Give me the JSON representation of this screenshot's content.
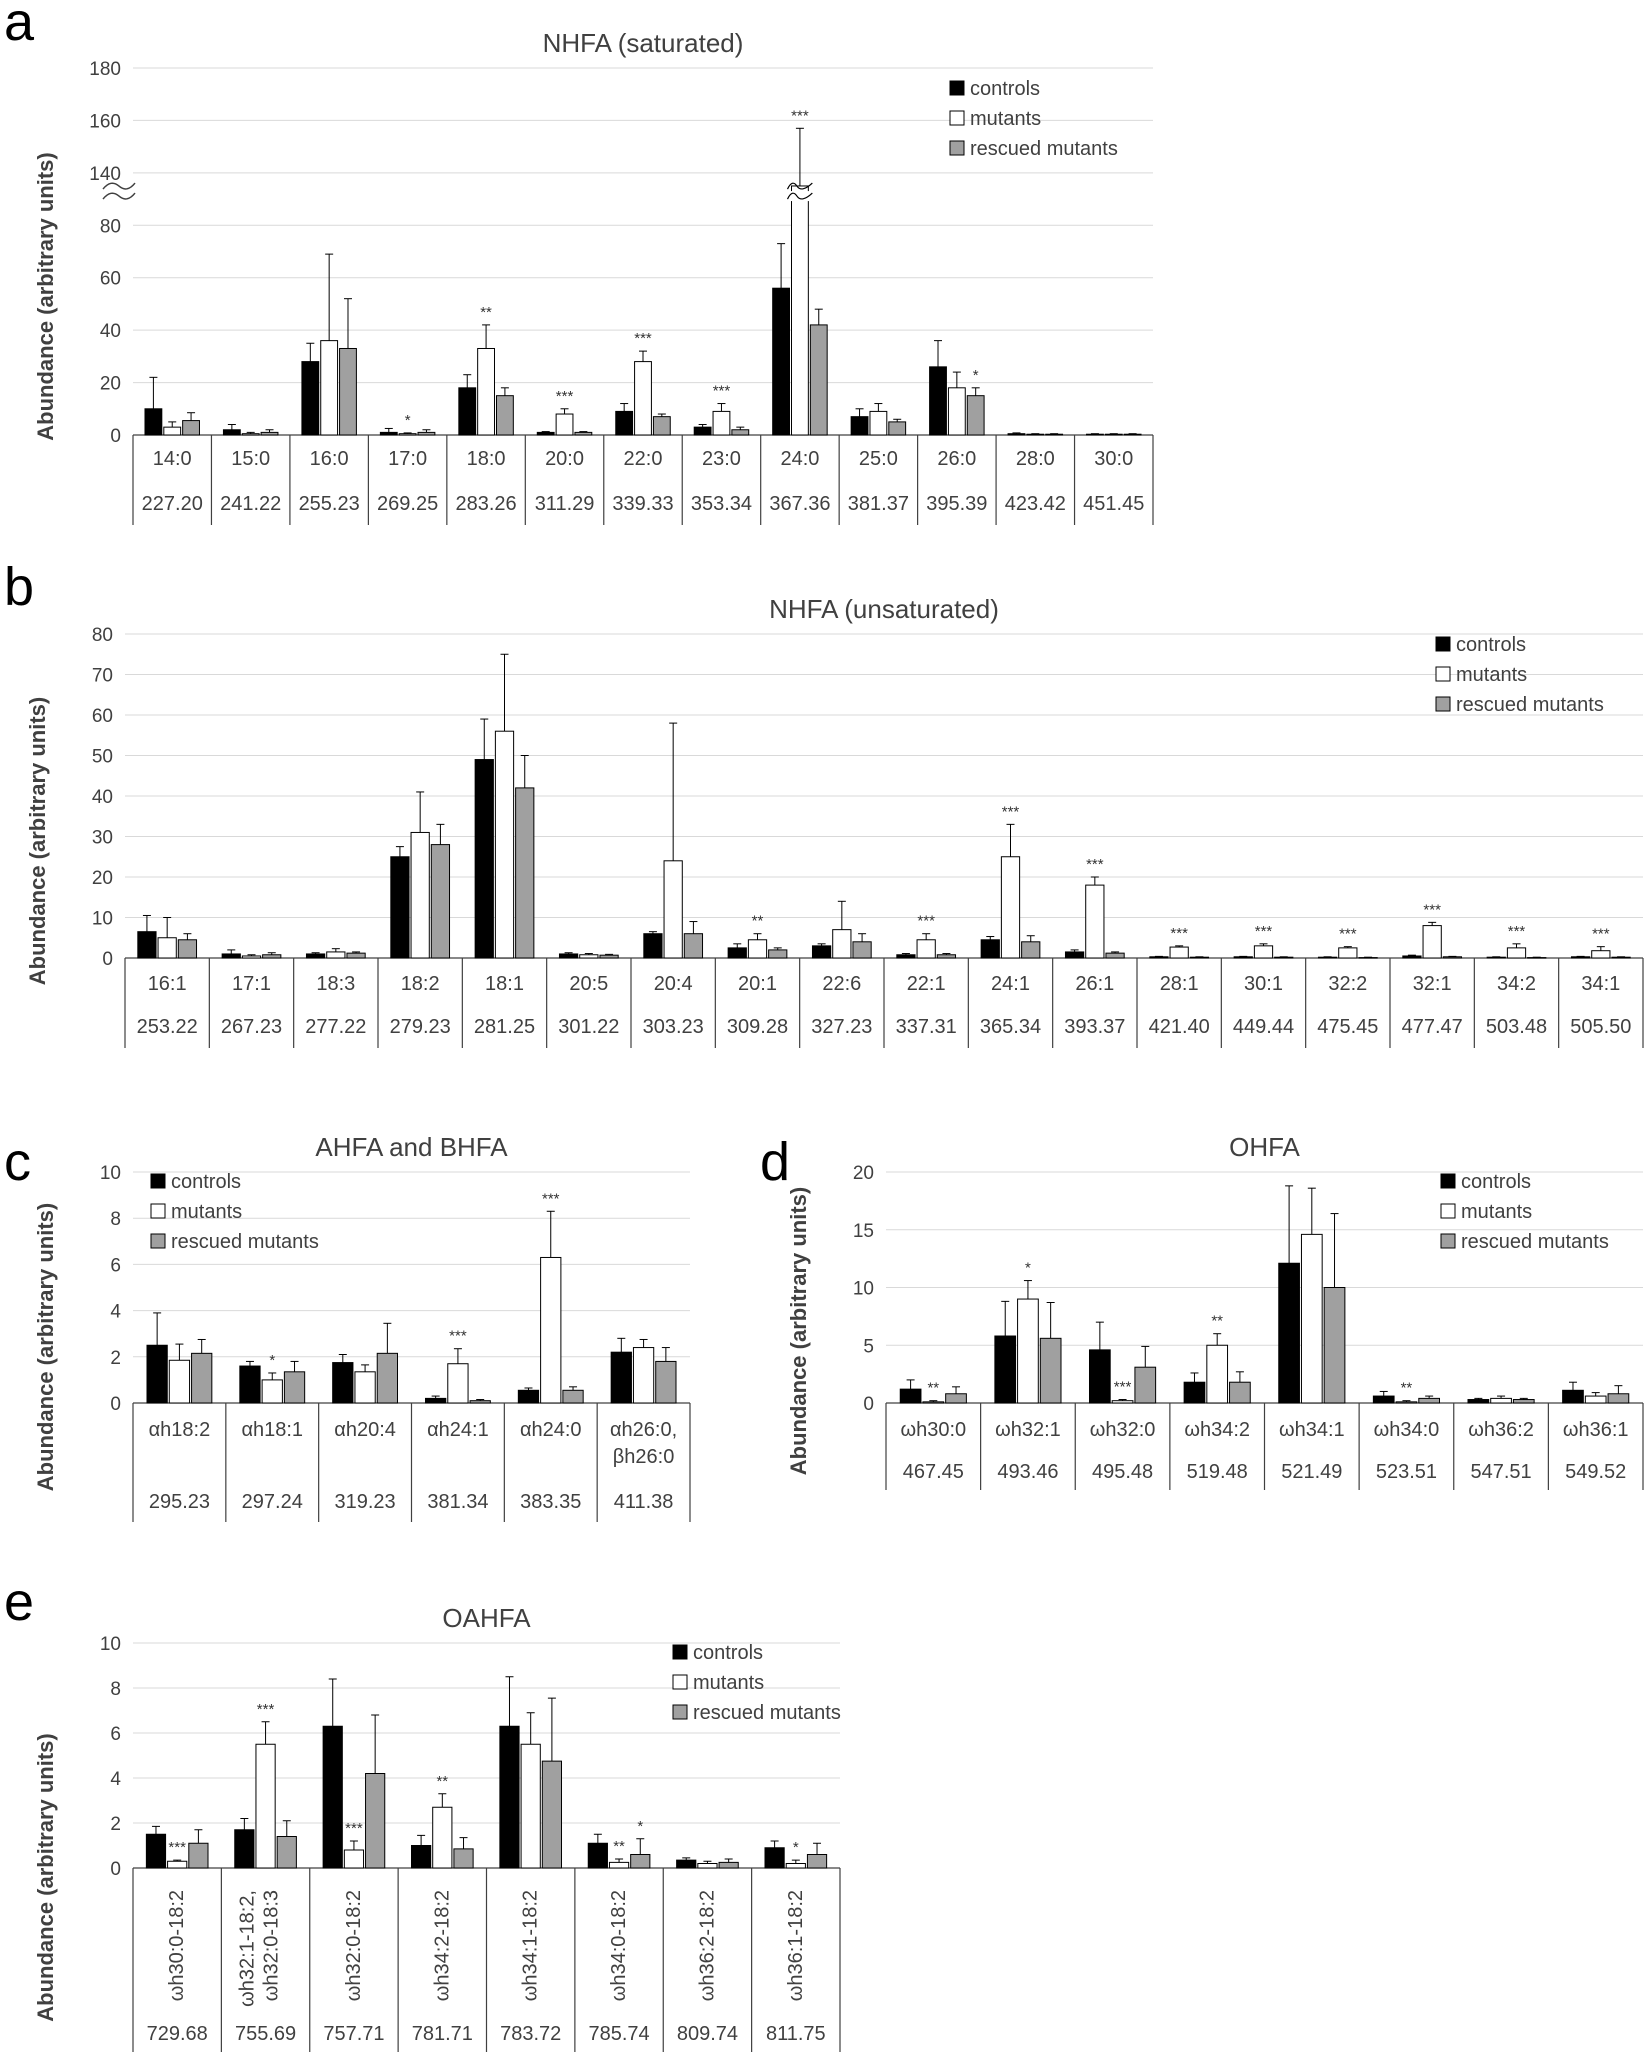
{
  "figure": {
    "series_names": [
      "controls",
      "mutants",
      "rescued mutants"
    ]
  },
  "colors": {
    "controls": "#000000",
    "mutants": "#ffffff",
    "rescued": "#a0a0a0",
    "grid": "#d9d9d9",
    "text": "#404040"
  },
  "chart_data": [
    {
      "panel": "a",
      "type": "bar",
      "title": "NHFA (saturated)",
      "ylabel": "Abundance (arbitrary units)",
      "ylim": [
        0,
        180
      ],
      "axis_break": {
        "from": 90,
        "to": 130
      },
      "yticks": [
        "0",
        "20",
        "40",
        "60",
        "80",
        "140",
        "160",
        "180"
      ],
      "categories": [
        "14:0",
        "15:0",
        "16:0",
        "17:0",
        "18:0",
        "20:0",
        "22:0",
        "23:0",
        "24:0",
        "25:0",
        "26:0",
        "28:0",
        "30:0"
      ],
      "mz": [
        "227.20",
        "241.22",
        "255.23",
        "269.25",
        "283.26",
        "311.29",
        "339.33",
        "353.34",
        "367.36",
        "381.37",
        "395.39",
        "423.42",
        "451.45"
      ],
      "series": [
        {
          "name": "controls",
          "values": [
            10,
            2,
            28,
            1,
            18,
            1,
            9,
            3,
            56,
            7,
            26,
            0.5,
            0.3
          ],
          "errors": [
            12,
            2,
            7,
            1.5,
            5,
            0.3,
            3,
            1,
            17,
            3,
            10,
            0.3,
            0.2
          ]
        },
        {
          "name": "mutants",
          "values": [
            3,
            0.5,
            36,
            0.5,
            33,
            8,
            28,
            9,
            135,
            9,
            18,
            0.3,
            0.3
          ],
          "errors": [
            2,
            0.5,
            33,
            0.3,
            9,
            2,
            4,
            3,
            22,
            3,
            6,
            0.2,
            0.2
          ]
        },
        {
          "name": "rescued mutants",
          "values": [
            5.5,
            1,
            33,
            1,
            15,
            1,
            7,
            2,
            42,
            5,
            15,
            0.3,
            0.3
          ],
          "errors": [
            3,
            1,
            19,
            1,
            3,
            0.3,
            1,
            1,
            6,
            1,
            3,
            0.2,
            0.2
          ]
        }
      ],
      "significance": [
        {
          "cat": 3,
          "series": 1,
          "label": "*"
        },
        {
          "cat": 4,
          "series": 1,
          "label": "**"
        },
        {
          "cat": 5,
          "series": 1,
          "label": "***"
        },
        {
          "cat": 6,
          "series": 1,
          "label": "***"
        },
        {
          "cat": 7,
          "series": 1,
          "label": "***"
        },
        {
          "cat": 8,
          "series": 1,
          "label": "***"
        },
        {
          "cat": 10,
          "series": 2,
          "label": "*"
        }
      ],
      "legend": "top-right"
    },
    {
      "panel": "b",
      "type": "bar",
      "title": "NHFA (unsaturated)",
      "ylabel": "Abundance (arbitrary units)",
      "ylim": [
        0,
        80
      ],
      "yticks": [
        "0",
        "10",
        "20",
        "30",
        "40",
        "50",
        "60",
        "70",
        "80"
      ],
      "categories": [
        "16:1",
        "17:1",
        "18:3",
        "18:2",
        "18:1",
        "20:5",
        "20:4",
        "20:1",
        "22:6",
        "22:1",
        "24:1",
        "26:1",
        "28:1",
        "30:1",
        "32:2",
        "32:1",
        "34:2",
        "34:1"
      ],
      "mz": [
        "253.22",
        "267.23",
        "277.22",
        "279.23",
        "281.25",
        "301.22",
        "303.23",
        "309.28",
        "327.23",
        "337.31",
        "365.34",
        "393.37",
        "421.40",
        "449.44",
        "475.45",
        "477.47",
        "503.48",
        "505.50"
      ],
      "series": [
        {
          "name": "controls",
          "values": [
            6.5,
            1,
            1,
            25,
            49,
            1,
            6,
            2.5,
            3,
            0.8,
            4.5,
            1.5,
            0.3,
            0.3,
            0.2,
            0.5,
            0.2,
            0.3
          ],
          "errors": [
            4,
            1,
            0.3,
            2.5,
            10,
            0.3,
            0.5,
            1,
            0.5,
            0.3,
            0.8,
            0.5,
            0.1,
            0.1,
            0.1,
            0.2,
            0.1,
            0.1
          ]
        },
        {
          "name": "mutants",
          "values": [
            5,
            0.5,
            1.5,
            31,
            56,
            0.8,
            24,
            4.5,
            7,
            4.5,
            25,
            18,
            2.7,
            3,
            2.5,
            8,
            2.5,
            1.8
          ],
          "errors": [
            5,
            0.3,
            0.8,
            10,
            19,
            0.3,
            34,
            1.5,
            7,
            1.5,
            8,
            2,
            0.3,
            0.5,
            0.3,
            0.8,
            1,
            1
          ]
        },
        {
          "name": "rescued mutants",
          "values": [
            4.5,
            0.8,
            1.2,
            28,
            42,
            0.7,
            6,
            2,
            4,
            0.8,
            4,
            1.2,
            0.2,
            0.2,
            0.1,
            0.3,
            0.1,
            0.2
          ],
          "errors": [
            1.5,
            0.5,
            0.3,
            5,
            8,
            0.2,
            3,
            0.5,
            2,
            0.3,
            1.5,
            0.3,
            0.1,
            0.1,
            0.1,
            0.1,
            0.1,
            0.1
          ]
        }
      ],
      "significance": [
        {
          "cat": 7,
          "series": 1,
          "label": "**"
        },
        {
          "cat": 9,
          "series": 1,
          "label": "***"
        },
        {
          "cat": 10,
          "series": 1,
          "label": "***"
        },
        {
          "cat": 11,
          "series": 1,
          "label": "***"
        },
        {
          "cat": 12,
          "series": 1,
          "label": "***"
        },
        {
          "cat": 13,
          "series": 1,
          "label": "***"
        },
        {
          "cat": 14,
          "series": 1,
          "label": "***"
        },
        {
          "cat": 15,
          "series": 1,
          "label": "***"
        },
        {
          "cat": 16,
          "series": 1,
          "label": "***"
        },
        {
          "cat": 17,
          "series": 1,
          "label": "***"
        }
      ],
      "legend": "top-right"
    },
    {
      "panel": "c",
      "type": "bar",
      "title": "AHFA and BHFA",
      "ylabel": "Abundance (arbitrary units)",
      "ylim": [
        0,
        10
      ],
      "yticks": [
        "0",
        "2",
        "4",
        "6",
        "8",
        "10"
      ],
      "categories": [
        "αh18:2",
        "αh18:1",
        "αh20:4",
        "αh24:1",
        "αh24:0",
        "αh26:0,\nβh26:0"
      ],
      "mz": [
        "295.23",
        "297.24",
        "319.23",
        "381.34",
        "383.35",
        "411.38"
      ],
      "series": [
        {
          "name": "controls",
          "values": [
            2.5,
            1.6,
            1.75,
            0.2,
            0.55,
            2.2
          ],
          "errors": [
            1.4,
            0.2,
            0.35,
            0.1,
            0.1,
            0.6
          ]
        },
        {
          "name": "mutants",
          "values": [
            1.85,
            1.0,
            1.35,
            1.7,
            6.3,
            2.4
          ],
          "errors": [
            0.7,
            0.3,
            0.3,
            0.65,
            2.0,
            0.35
          ]
        },
        {
          "name": "rescued mutants",
          "values": [
            2.15,
            1.35,
            2.15,
            0.1,
            0.55,
            1.8
          ],
          "errors": [
            0.6,
            0.45,
            1.3,
            0.05,
            0.15,
            0.6
          ]
        }
      ],
      "significance": [
        {
          "cat": 1,
          "series": 1,
          "label": "*"
        },
        {
          "cat": 3,
          "series": 1,
          "label": "***"
        },
        {
          "cat": 4,
          "series": 1,
          "label": "***"
        }
      ],
      "legend": "top-left"
    },
    {
      "panel": "d",
      "type": "bar",
      "title": "OHFA",
      "ylabel": "Abundance (arbitrary units)",
      "ylim": [
        0,
        20
      ],
      "yticks": [
        "0",
        "5",
        "10",
        "15",
        "20"
      ],
      "categories": [
        "ωh30:0",
        "ωh32:1",
        "ωh32:0",
        "ωh34:2",
        "ωh34:1",
        "ωh34:0",
        "ωh36:2",
        "ωh36:1"
      ],
      "mz": [
        "467.45",
        "493.46",
        "495.48",
        "519.48",
        "521.49",
        "523.51",
        "547.51",
        "549.52"
      ],
      "series": [
        {
          "name": "controls",
          "values": [
            1.2,
            5.8,
            4.6,
            1.8,
            12.1,
            0.6,
            0.3,
            1.1
          ],
          "errors": [
            0.8,
            3,
            2.4,
            0.8,
            6.7,
            0.4,
            0.1,
            0.7
          ]
        },
        {
          "name": "mutants",
          "values": [
            0.1,
            9.0,
            0.2,
            5.0,
            14.6,
            0.1,
            0.4,
            0.6
          ],
          "errors": [
            0.1,
            1.6,
            0.1,
            1.0,
            4.0,
            0.1,
            0.2,
            0.3
          ]
        },
        {
          "name": "rescued mutants",
          "values": [
            0.8,
            5.6,
            3.1,
            1.8,
            10.0,
            0.4,
            0.3,
            0.8
          ],
          "errors": [
            0.6,
            3.1,
            1.8,
            0.9,
            6.4,
            0.2,
            0.1,
            0.7
          ]
        }
      ],
      "significance": [
        {
          "cat": 0,
          "series": 1,
          "label": "**"
        },
        {
          "cat": 1,
          "series": 1,
          "label": "*"
        },
        {
          "cat": 2,
          "series": 1,
          "label": "***"
        },
        {
          "cat": 3,
          "series": 1,
          "label": "**"
        },
        {
          "cat": 5,
          "series": 1,
          "label": "**"
        }
      ],
      "legend": "top-right"
    },
    {
      "panel": "e",
      "type": "bar",
      "title": "OAHFA",
      "ylabel": "Abundance (arbitrary units)",
      "ylim": [
        0,
        10
      ],
      "yticks": [
        "0",
        "2",
        "4",
        "6",
        "8",
        "10"
      ],
      "categories": [
        "ωh30:0-18:2",
        "ωh32:1-18:2,\nωh32:0-18:3",
        "ωh32:0-18:2",
        "ωh34:2-18:2",
        "ωh34:1-18:2",
        "ωh34:0-18:2",
        "ωh36:2-18:2",
        "ωh36:1-18:2"
      ],
      "mz": [
        "729.68",
        "755.69",
        "757.71",
        "781.71",
        "783.72",
        "785.74",
        "809.74",
        "811.75"
      ],
      "series": [
        {
          "name": "controls",
          "values": [
            1.5,
            1.7,
            6.3,
            1.0,
            6.3,
            1.1,
            0.35,
            0.9
          ],
          "errors": [
            0.35,
            0.5,
            2.1,
            0.45,
            2.2,
            0.4,
            0.1,
            0.3
          ]
        },
        {
          "name": "mutants",
          "values": [
            0.3,
            5.5,
            0.8,
            2.7,
            5.5,
            0.25,
            0.2,
            0.2
          ],
          "errors": [
            0.05,
            1.0,
            0.4,
            0.6,
            1.4,
            0.15,
            0.1,
            0.15
          ]
        },
        {
          "name": "rescued mutants",
          "values": [
            1.1,
            1.4,
            4.2,
            0.85,
            4.75,
            0.6,
            0.25,
            0.6
          ],
          "errors": [
            0.6,
            0.7,
            2.6,
            0.5,
            2.8,
            0.7,
            0.15,
            0.5
          ]
        }
      ],
      "significance": [
        {
          "cat": 0,
          "series": 1,
          "label": "***"
        },
        {
          "cat": 1,
          "series": 1,
          "label": "***"
        },
        {
          "cat": 2,
          "series": 1,
          "label": "***"
        },
        {
          "cat": 3,
          "series": 1,
          "label": "**"
        },
        {
          "cat": 5,
          "series": 1,
          "label": "**"
        },
        {
          "cat": 5,
          "series": 2,
          "label": "*"
        },
        {
          "cat": 7,
          "series": 1,
          "label": "*"
        }
      ],
      "legend": "top-right"
    }
  ]
}
